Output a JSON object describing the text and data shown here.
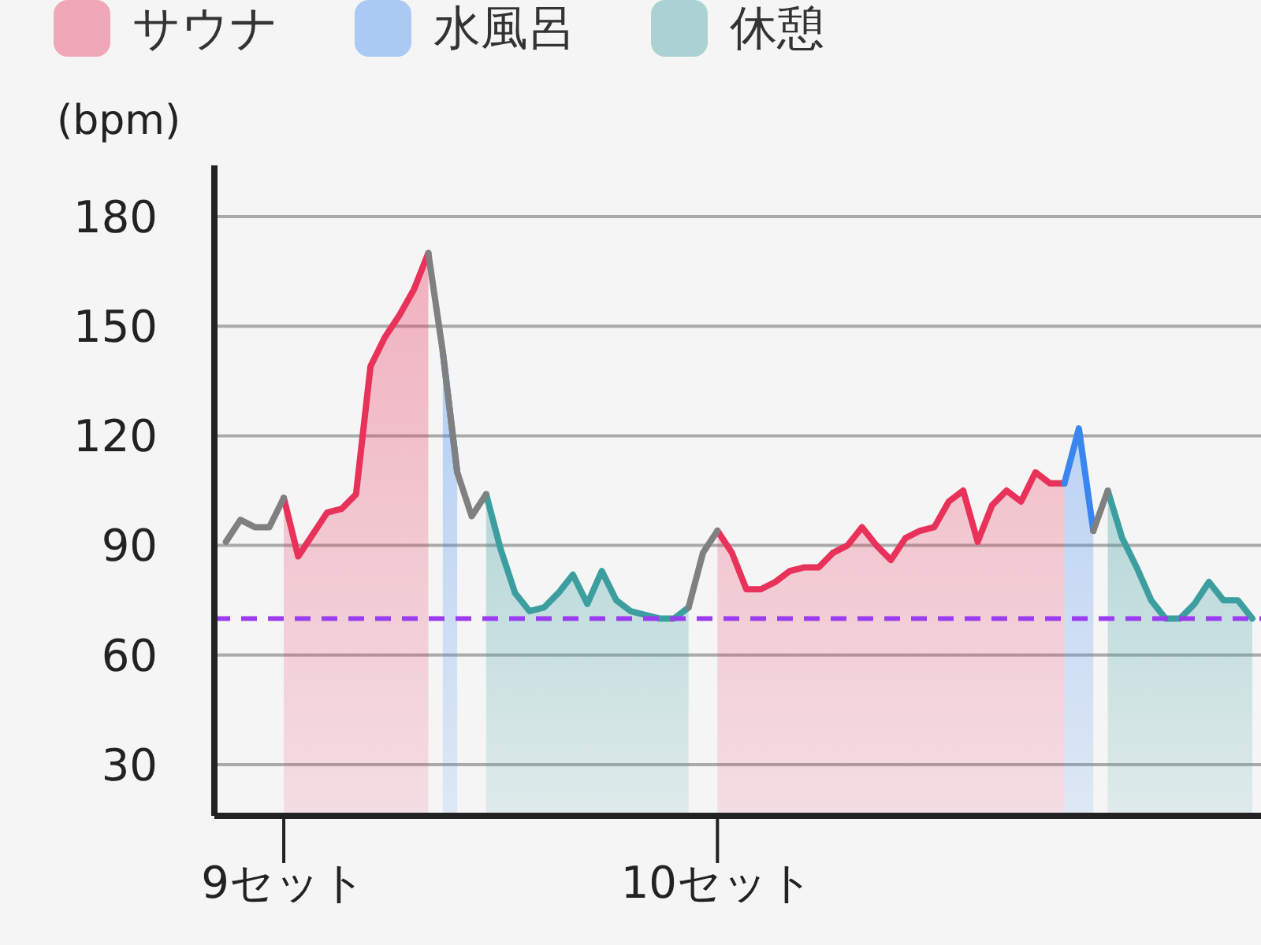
{
  "chart_data": {
    "type": "area",
    "ylabel": "(bpm)",
    "legend": "top",
    "grid": "y",
    "ylim": [
      16,
      194
    ],
    "yticks": [
      30,
      60,
      90,
      120,
      150,
      180
    ],
    "categories": [
      null,
      null,
      null,
      null,
      "9セット",
      null,
      null,
      null,
      null,
      null,
      null,
      null,
      null,
      null,
      null,
      null,
      null,
      null,
      null,
      null,
      null,
      null,
      null,
      null,
      null,
      null,
      null,
      null,
      null,
      null,
      null,
      null,
      null,
      null,
      "10セット",
      null,
      null,
      null,
      null,
      null,
      null,
      null,
      null,
      null,
      null,
      null,
      null,
      null,
      null,
      null,
      null,
      null,
      null,
      null,
      null,
      null,
      null,
      null,
      null,
      null,
      null,
      null,
      null,
      null,
      null,
      null,
      null,
      null,
      null,
      null,
      null,
      null
    ],
    "ref_lines": [
      {
        "axis": "y",
        "value": 70,
        "color": "#9b3cf0",
        "line_style": "dashed"
      }
    ],
    "series": [
      {
        "type": "line",
        "color": "#808080",
        "values": [
          91,
          97,
          95,
          95,
          103,
          null,
          null,
          null,
          null,
          null,
          null,
          null,
          null,
          null,
          170,
          143,
          110,
          98,
          104,
          null,
          null,
          null,
          null,
          null,
          null,
          null,
          null,
          null,
          null,
          null,
          null,
          null,
          73,
          88,
          94,
          null,
          null,
          null,
          null,
          null,
          null,
          null,
          null,
          null,
          null,
          null,
          null,
          null,
          null,
          null,
          null,
          null,
          null,
          null,
          null,
          null,
          null,
          null,
          null,
          null,
          94,
          105,
          null,
          null,
          null,
          null,
          null,
          null,
          null,
          null,
          null,
          null
        ]
      },
      {
        "name": "サウナ",
        "color": "#e8325a",
        "values": [
          null,
          null,
          null,
          null,
          103,
          87,
          93,
          99,
          100,
          104,
          139,
          147,
          153,
          160,
          170,
          null,
          null,
          null,
          null,
          null,
          null,
          null,
          null,
          null,
          null,
          null,
          null,
          null,
          null,
          null,
          null,
          null,
          null,
          null,
          94,
          88,
          78,
          78,
          80,
          83,
          84,
          84,
          88,
          90,
          95,
          90,
          86,
          92,
          94,
          95,
          102,
          105,
          91,
          101,
          105,
          102,
          110,
          107,
          107,
          null,
          null,
          null,
          null,
          null,
          null,
          null,
          null,
          null,
          null,
          null,
          null,
          null
        ]
      },
      {
        "name": "水風呂",
        "color": "#3a86f0",
        "values": [
          null,
          null,
          null,
          null,
          null,
          null,
          null,
          null,
          null,
          null,
          null,
          null,
          null,
          null,
          null,
          143,
          110,
          null,
          null,
          null,
          null,
          null,
          null,
          null,
          null,
          null,
          null,
          null,
          null,
          null,
          null,
          null,
          null,
          null,
          null,
          null,
          null,
          null,
          null,
          null,
          null,
          null,
          null,
          null,
          null,
          null,
          null,
          null,
          null,
          null,
          null,
          null,
          null,
          null,
          null,
          null,
          null,
          null,
          107,
          122,
          94,
          null,
          null,
          null,
          null,
          null,
          null,
          null,
          null,
          null,
          null,
          null
        ]
      },
      {
        "name": "休憩",
        "color": "#3d9ea0",
        "values": [
          null,
          null,
          null,
          null,
          null,
          null,
          null,
          null,
          null,
          null,
          null,
          null,
          null,
          null,
          null,
          null,
          null,
          null,
          104,
          89,
          77,
          72,
          73,
          77,
          82,
          74,
          83,
          75,
          72,
          71,
          70,
          70,
          73,
          null,
          null,
          null,
          null,
          null,
          null,
          null,
          null,
          null,
          null,
          null,
          null,
          null,
          null,
          null,
          null,
          null,
          null,
          null,
          null,
          null,
          null,
          null,
          null,
          null,
          null,
          null,
          null,
          105,
          92,
          84,
          75,
          70,
          70,
          74,
          80,
          75,
          75,
          70
        ]
      }
    ]
  }
}
